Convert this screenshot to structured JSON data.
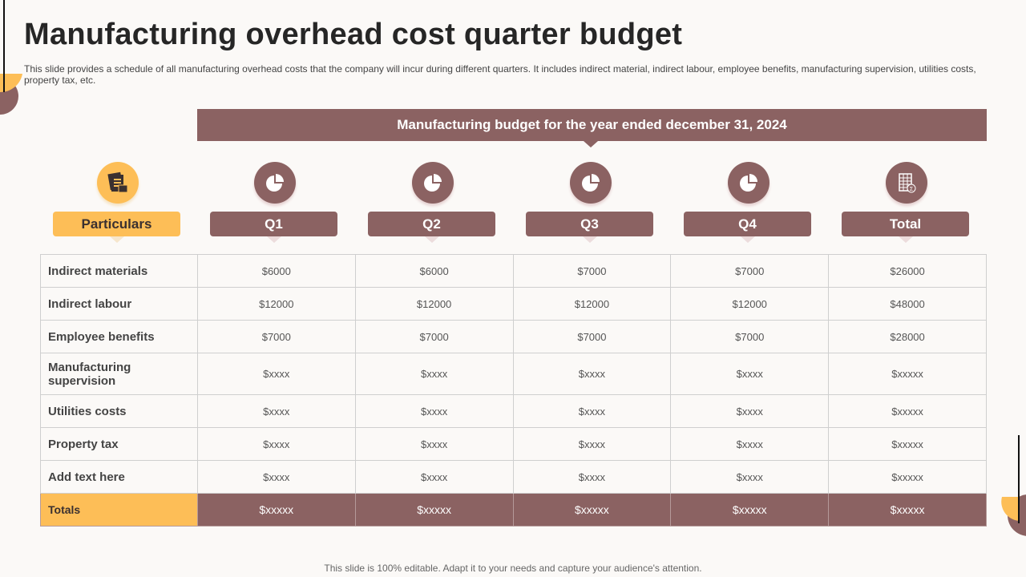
{
  "title": "Manufacturing overhead cost quarter budget",
  "subtitle": "This slide provides a schedule of all manufacturing overhead costs that the company will incur during different quarters. It includes indirect material, indirect labour, employee benefits, manufacturing supervision, utilities costs, property tax,  etc.",
  "banner": "Manufacturing budget for the year ended december 31, 2024",
  "colors": {
    "accent": "#8B6262",
    "highlight": "#FDBE57",
    "background": "#FBF9F7"
  },
  "headers": [
    {
      "label": "Particulars",
      "icon": "documents-icon"
    },
    {
      "label": "Q1",
      "icon": "pie-chart-icon"
    },
    {
      "label": "Q2",
      "icon": "pie-chart-icon"
    },
    {
      "label": "Q3",
      "icon": "pie-chart-icon"
    },
    {
      "label": "Q4",
      "icon": "pie-chart-icon"
    },
    {
      "label": "Total",
      "icon": "spreadsheet-sum-icon"
    }
  ],
  "rows": [
    {
      "label": "Indirect materials",
      "values": [
        "$6000",
        "$6000",
        "$7000",
        "$7000",
        "$26000"
      ]
    },
    {
      "label": "Indirect labour",
      "values": [
        "$12000",
        "$12000",
        "$12000",
        "$12000",
        "$48000"
      ]
    },
    {
      "label": "Employee benefits",
      "values": [
        "$7000",
        "$7000",
        "$7000",
        "$7000",
        "$28000"
      ]
    },
    {
      "label": "Manufacturing supervision",
      "values": [
        "$xxxx",
        "$xxxx",
        "$xxxx",
        "$xxxx",
        "$xxxxx"
      ]
    },
    {
      "label": "Utilities costs",
      "values": [
        "$xxxx",
        "$xxxx",
        "$xxxx",
        "$xxxx",
        "$xxxxx"
      ]
    },
    {
      "label": "Property tax",
      "values": [
        "$xxxx",
        "$xxxx",
        "$xxxx",
        "$xxxx",
        "$xxxxx"
      ]
    },
    {
      "label": "Add text here",
      "values": [
        "$xxxx",
        "$xxxx",
        "$xxxx",
        "$xxxx",
        "$xxxxx"
      ]
    }
  ],
  "totals": {
    "label": "Totals",
    "values": [
      "$xxxxx",
      "$xxxxx",
      "$xxxxx",
      "$xxxxx",
      "$xxxxx"
    ]
  },
  "footer": "This slide is 100% editable. Adapt it to your needs and capture your audience's attention."
}
